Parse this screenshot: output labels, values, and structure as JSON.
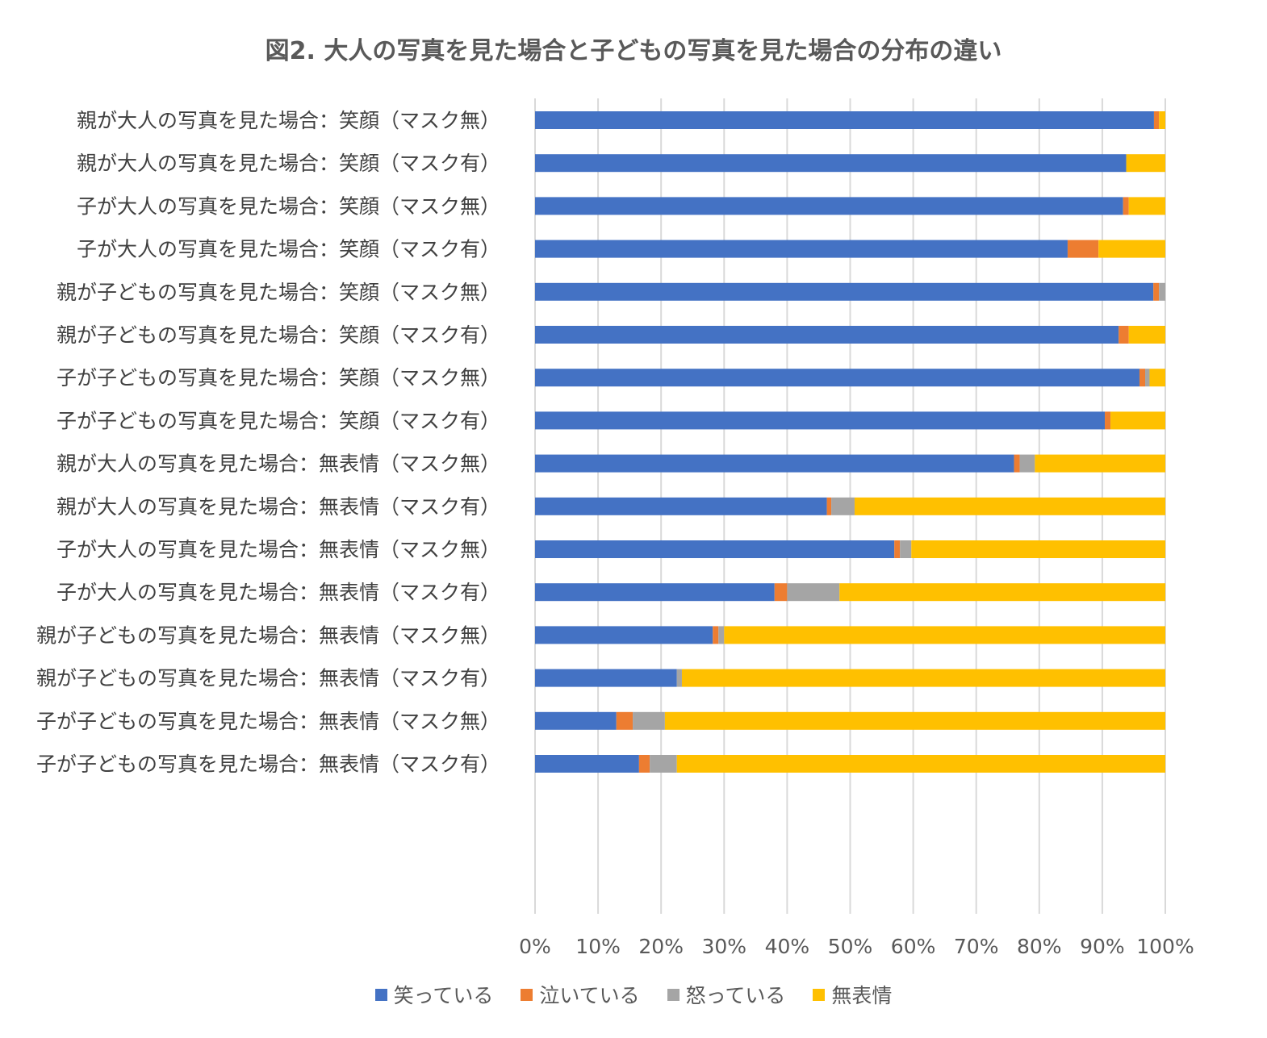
{
  "chart_data": {
    "type": "bar",
    "orientation": "horizontal",
    "stacked": "percent",
    "title": "図2. 大人の写真を見た場合と子どもの写真を見た場合の分布の違い",
    "xlabel": "",
    "ylabel": "",
    "xlim": [
      0,
      100
    ],
    "x_ticks": [
      "0%",
      "10%",
      "20%",
      "30%",
      "40%",
      "50%",
      "60%",
      "70%",
      "80%",
      "90%",
      "100%"
    ],
    "grid": "vertical",
    "legend": "bottom",
    "groups": [
      {
        "rows": [
          {
            "label": "親が大人の写真を見た場合：笑顔（マスク無）",
            "values": [
              98.2,
              0.8,
              0,
              1.0
            ]
          },
          {
            "label": "親が大人の写真を見た場合：笑顔（マスク有）",
            "values": [
              93.8,
              0,
              0,
              6.2
            ]
          },
          {
            "label": "子が大人の写真を見た場合：笑顔（マスク無）",
            "values": [
              93.3,
              0.9,
              0,
              5.8
            ]
          },
          {
            "label": "子が大人の写真を見た場合：笑顔（マスク有）",
            "values": [
              84.5,
              4.9,
              0,
              10.6
            ]
          }
        ]
      },
      {
        "rows": [
          {
            "label": "親が子どもの写真を見た場合：笑顔（マスク無）",
            "values": [
              98.1,
              0.9,
              1.0,
              0
            ]
          },
          {
            "label": "親が子どもの写真を見た場合：笑顔（マスク有）",
            "values": [
              92.6,
              1.6,
              0,
              5.8
            ]
          },
          {
            "label": "子が子どもの写真を見た場合：笑顔（マスク無）",
            "values": [
              95.9,
              0.9,
              0.7,
              2.5
            ]
          },
          {
            "label": "子が子どもの写真を見た場合：笑顔（マスク有）",
            "values": [
              90.4,
              0.9,
              0,
              8.7
            ]
          }
        ]
      },
      {
        "rows": [
          {
            "label": "親が大人の写真を見た場合：無表情（マスク無）",
            "values": [
              76.0,
              0.9,
              2.4,
              20.7
            ]
          },
          {
            "label": "親が大人の写真を見た場合：無表情（マスク有）",
            "values": [
              46.3,
              0.7,
              3.7,
              49.3
            ]
          },
          {
            "label": "子が大人の写真を見た場合：無表情（マスク無）",
            "values": [
              57.0,
              0.9,
              1.8,
              40.3
            ]
          },
          {
            "label": "子が大人の写真を見た場合：無表情（マスク有）",
            "values": [
              38.0,
              2.0,
              8.3,
              51.7
            ]
          }
        ]
      },
      {
        "rows": [
          {
            "label": "親が子どもの写真を見た場合：無表情（マスク無）",
            "values": [
              28.2,
              0.9,
              0.9,
              70.0
            ]
          },
          {
            "label": "親が子どもの写真を見た場合：無表情（マスク有）",
            "values": [
              22.5,
              0,
              0.8,
              76.7
            ]
          },
          {
            "label": "子が子どもの写真を見た場合：無表情（マスク無）",
            "values": [
              12.9,
              2.6,
              5.1,
              79.4
            ]
          },
          {
            "label": "子が子どもの写真を見た場合：無表情（マスク有）",
            "values": [
              16.5,
              1.7,
              4.3,
              77.5
            ]
          }
        ]
      }
    ],
    "series": [
      {
        "name": "笑っている",
        "color": "#4472C4"
      },
      {
        "name": "泣いている",
        "color": "#ED7D31"
      },
      {
        "name": "怒っている",
        "color": "#A5A5A5"
      },
      {
        "name": "無表情",
        "color": "#FFC000"
      }
    ]
  }
}
